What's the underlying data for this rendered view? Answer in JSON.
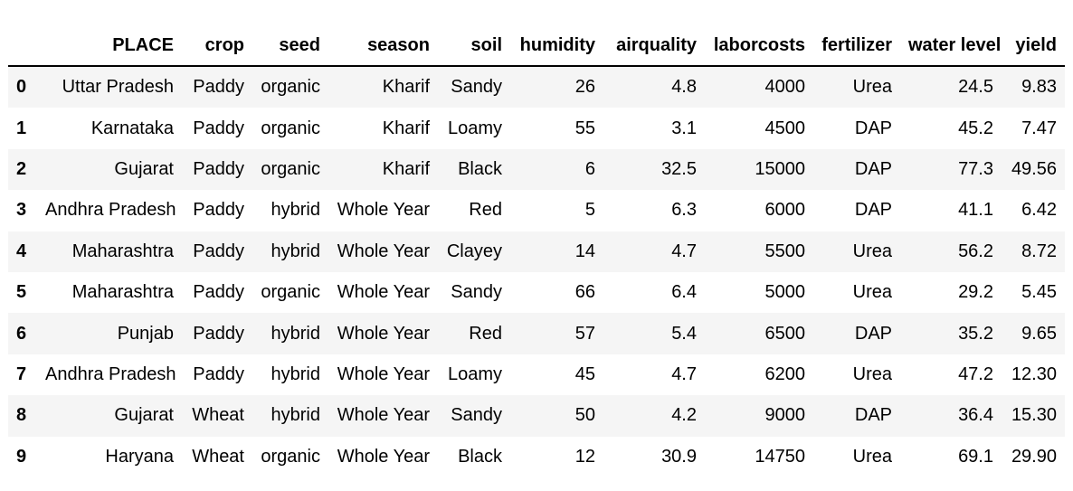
{
  "table": {
    "columns": [
      "",
      "PLACE",
      "crop",
      "seed",
      "season",
      "soil",
      "humidity",
      "airquality",
      "laborcosts",
      "fertilizer",
      "water level",
      "yield"
    ],
    "rows": [
      {
        "index": "0",
        "place": "Uttar Pradesh",
        "crop": "Paddy",
        "seed": "organic",
        "season": "Kharif",
        "soil": "Sandy",
        "humidity": "26",
        "airquality": "4.8",
        "laborcosts": "4000",
        "fertilizer": "Urea",
        "water_level": "24.5",
        "yield": "9.83"
      },
      {
        "index": "1",
        "place": "Karnataka",
        "crop": "Paddy",
        "seed": "organic",
        "season": "Kharif",
        "soil": "Loamy",
        "humidity": "55",
        "airquality": "3.1",
        "laborcosts": "4500",
        "fertilizer": "DAP",
        "water_level": "45.2",
        "yield": "7.47"
      },
      {
        "index": "2",
        "place": "Gujarat",
        "crop": "Paddy",
        "seed": "organic",
        "season": "Kharif",
        "soil": "Black",
        "humidity": "6",
        "airquality": "32.5",
        "laborcosts": "15000",
        "fertilizer": "DAP",
        "water_level": "77.3",
        "yield": "49.56"
      },
      {
        "index": "3",
        "place": "Andhra Pradesh",
        "crop": "Paddy",
        "seed": "hybrid",
        "season": "Whole Year",
        "soil": "Red",
        "humidity": "5",
        "airquality": "6.3",
        "laborcosts": "6000",
        "fertilizer": "DAP",
        "water_level": "41.1",
        "yield": "6.42"
      },
      {
        "index": "4",
        "place": "Maharashtra",
        "crop": "Paddy",
        "seed": "hybrid",
        "season": "Whole Year",
        "soil": "Clayey",
        "humidity": "14",
        "airquality": "4.7",
        "laborcosts": "5500",
        "fertilizer": "Urea",
        "water_level": "56.2",
        "yield": "8.72"
      },
      {
        "index": "5",
        "place": "Maharashtra",
        "crop": "Paddy",
        "seed": "organic",
        "season": "Whole Year",
        "soil": "Sandy",
        "humidity": "66",
        "airquality": "6.4",
        "laborcosts": "5000",
        "fertilizer": "Urea",
        "water_level": "29.2",
        "yield": "5.45"
      },
      {
        "index": "6",
        "place": "Punjab",
        "crop": "Paddy",
        "seed": "hybrid",
        "season": "Whole Year",
        "soil": "Red",
        "humidity": "57",
        "airquality": "5.4",
        "laborcosts": "6500",
        "fertilizer": "DAP",
        "water_level": "35.2",
        "yield": "9.65"
      },
      {
        "index": "7",
        "place": "Andhra Pradesh",
        "crop": "Paddy",
        "seed": "hybrid",
        "season": "Whole Year",
        "soil": "Loamy",
        "humidity": "45",
        "airquality": "4.7",
        "laborcosts": "6200",
        "fertilizer": "Urea",
        "water_level": "47.2",
        "yield": "12.30"
      },
      {
        "index": "8",
        "place": "Gujarat",
        "crop": "Wheat",
        "seed": "hybrid",
        "season": "Whole Year",
        "soil": "Sandy",
        "humidity": "50",
        "airquality": "4.2",
        "laborcosts": "9000",
        "fertilizer": "DAP",
        "water_level": "36.4",
        "yield": "15.30"
      },
      {
        "index": "9",
        "place": "Haryana",
        "crop": "Wheat",
        "seed": "organic",
        "season": "Whole Year",
        "soil": "Black",
        "humidity": "12",
        "airquality": "30.9",
        "laborcosts": "14750",
        "fertilizer": "Urea",
        "water_level": "69.1",
        "yield": "29.90"
      }
    ]
  }
}
